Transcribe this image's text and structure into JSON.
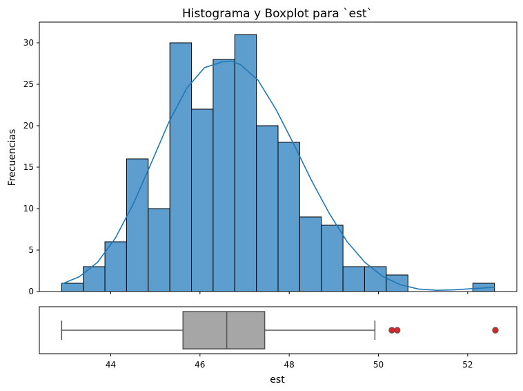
{
  "chart_data": {
    "title": "Histograma y Boxplot para `est`",
    "histogram": {
      "type": "bar",
      "ylabel": "Frecuencias",
      "xlim": [
        42.4,
        53.1
      ],
      "ylim": [
        0,
        32.5
      ],
      "yticks": [
        0,
        5,
        10,
        15,
        20,
        25,
        30
      ],
      "bin_start": 42.9,
      "bin_width": 0.485,
      "counts": [
        1,
        3,
        6,
        16,
        10,
        30,
        22,
        28,
        31,
        20,
        18,
        9,
        8,
        3,
        3,
        2,
        0,
        0,
        0,
        1
      ],
      "bar_color": "#5e9ecf",
      "edge_color": "#000000",
      "kde": {
        "color": "#1f77b4",
        "x": [
          42.9,
          43.3,
          43.7,
          44.1,
          44.5,
          44.9,
          45.3,
          45.7,
          46.1,
          46.5,
          46.7,
          46.9,
          47.3,
          47.7,
          48.1,
          48.5,
          48.9,
          49.3,
          49.7,
          50.1,
          50.5,
          50.9,
          51.3,
          51.7,
          52.1,
          52.6
        ],
        "y": [
          0.9,
          1.8,
          3.5,
          6.4,
          10.5,
          15.4,
          20.4,
          24.5,
          27.0,
          27.7,
          27.8,
          27.4,
          25.5,
          22.0,
          17.8,
          13.4,
          9.4,
          6.0,
          3.5,
          1.8,
          0.8,
          0.3,
          0.15,
          0.2,
          0.35,
          0.5
        ]
      }
    },
    "boxplot": {
      "type": "box",
      "xlabel": "est",
      "xticks": [
        44,
        46,
        48,
        50,
        52
      ],
      "whisker_low": 42.9,
      "q1": 45.62,
      "median": 46.6,
      "q3": 47.45,
      "whisker_high": 49.92,
      "outliers": [
        50.3,
        50.42,
        52.62
      ],
      "box_color": "#a6a6a6",
      "line_color": "#555555",
      "outlier_color": "#d62728"
    }
  }
}
